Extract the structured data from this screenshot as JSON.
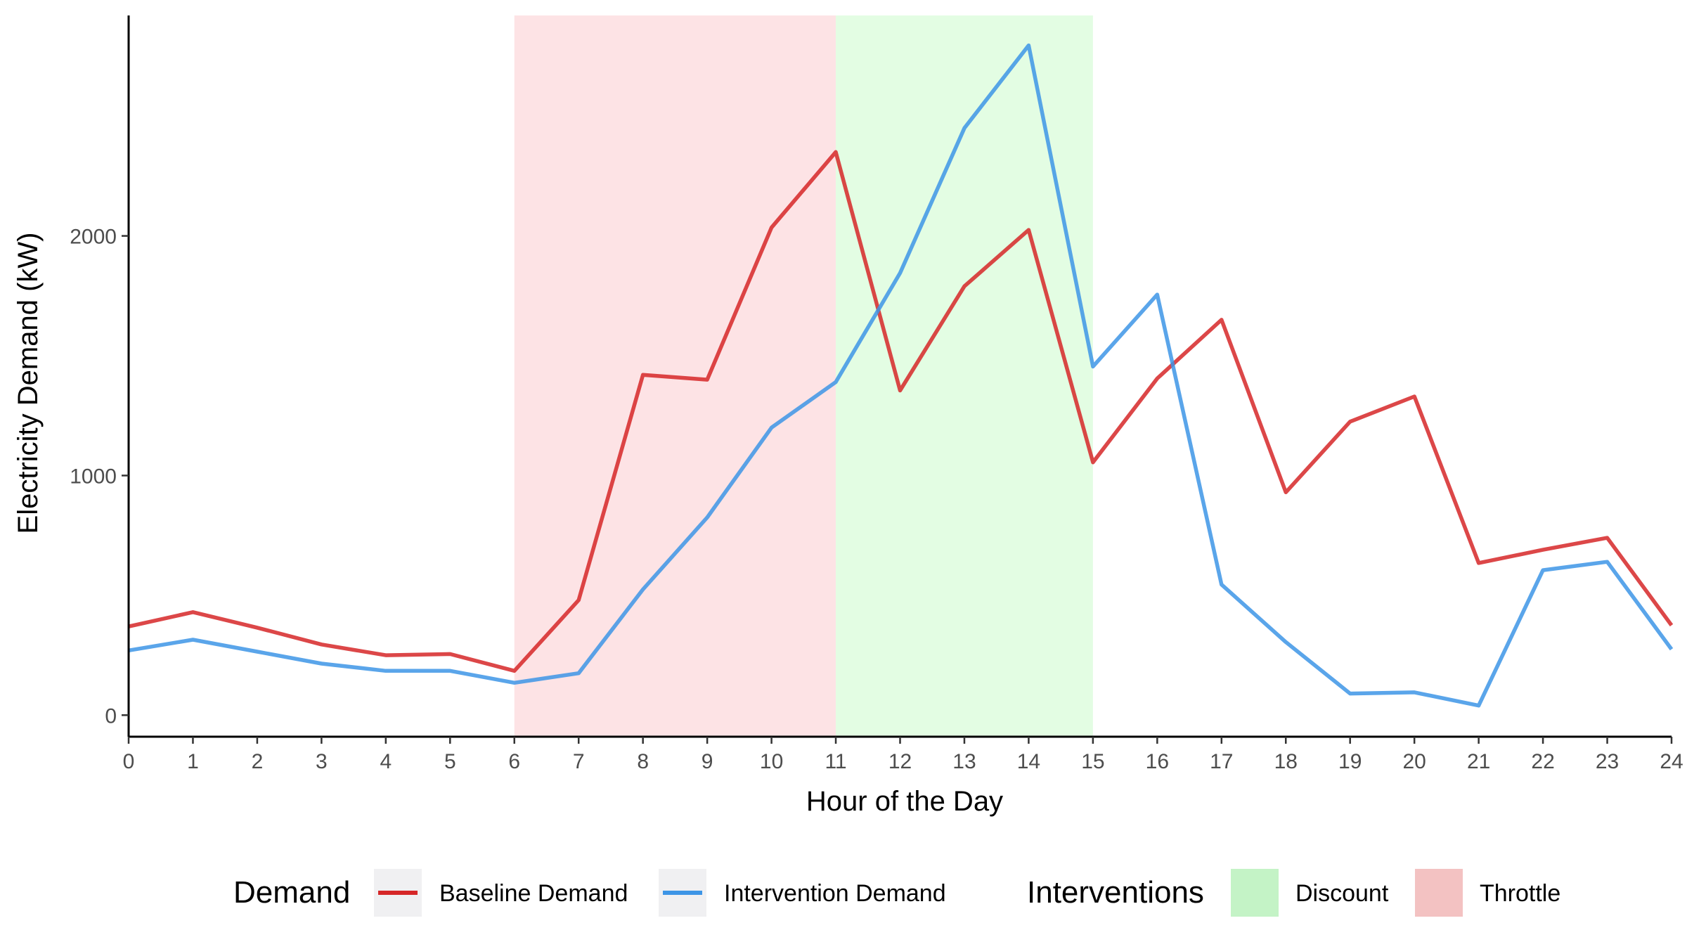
{
  "chart_data": {
    "type": "line",
    "xlabel": "Hour of the Day",
    "ylabel": "Electricity Demand (kW)",
    "xlim": [
      0,
      24
    ],
    "ylim": [
      -90,
      2920
    ],
    "x_ticks": [
      0,
      1,
      2,
      3,
      4,
      5,
      6,
      7,
      8,
      9,
      10,
      11,
      12,
      13,
      14,
      15,
      16,
      17,
      18,
      19,
      20,
      21,
      22,
      23,
      24
    ],
    "y_ticks": [
      0,
      1000,
      2000
    ],
    "grid": false,
    "legend_position": "bottom",
    "x": [
      0,
      1,
      2,
      3,
      4,
      5,
      6,
      7,
      8,
      9,
      10,
      11,
      12,
      13,
      14,
      15,
      16,
      17,
      18,
      19,
      20,
      21,
      22,
      23,
      24
    ],
    "series": [
      {
        "name": "Baseline Demand",
        "color": "#d62728",
        "values": [
          370,
          430,
          365,
          295,
          250,
          255,
          185,
          480,
          1420,
          1400,
          2035,
          2350,
          1355,
          1790,
          2025,
          1055,
          1405,
          1650,
          930,
          1225,
          1330,
          635,
          690,
          740,
          375
        ]
      },
      {
        "name": "Intervention Demand",
        "color": "#3d95e6",
        "values": [
          270,
          315,
          265,
          215,
          185,
          185,
          135,
          175,
          525,
          825,
          1200,
          1390,
          1845,
          2450,
          2795,
          1455,
          1755,
          545,
          305,
          90,
          95,
          40,
          605,
          640,
          275
        ]
      }
    ],
    "intervention_bands": [
      {
        "name": "Throttle",
        "start": 6,
        "end": 11,
        "color": "#fde3e5"
      },
      {
        "name": "Discount",
        "start": 11,
        "end": 15,
        "color": "#e3fde3"
      }
    ],
    "legend": {
      "demand_title": "Demand",
      "demand_items": [
        {
          "label": "Baseline Demand",
          "color": "#d62728"
        },
        {
          "label": "Intervention Demand",
          "color": "#3d95e6"
        }
      ],
      "interventions_title": "Interventions",
      "intervention_items": [
        {
          "label": "Discount",
          "color": "#c4f3c6"
        },
        {
          "label": "Throttle",
          "color": "#f3c2c2"
        }
      ],
      "key_background": "#f0f0f2"
    }
  }
}
